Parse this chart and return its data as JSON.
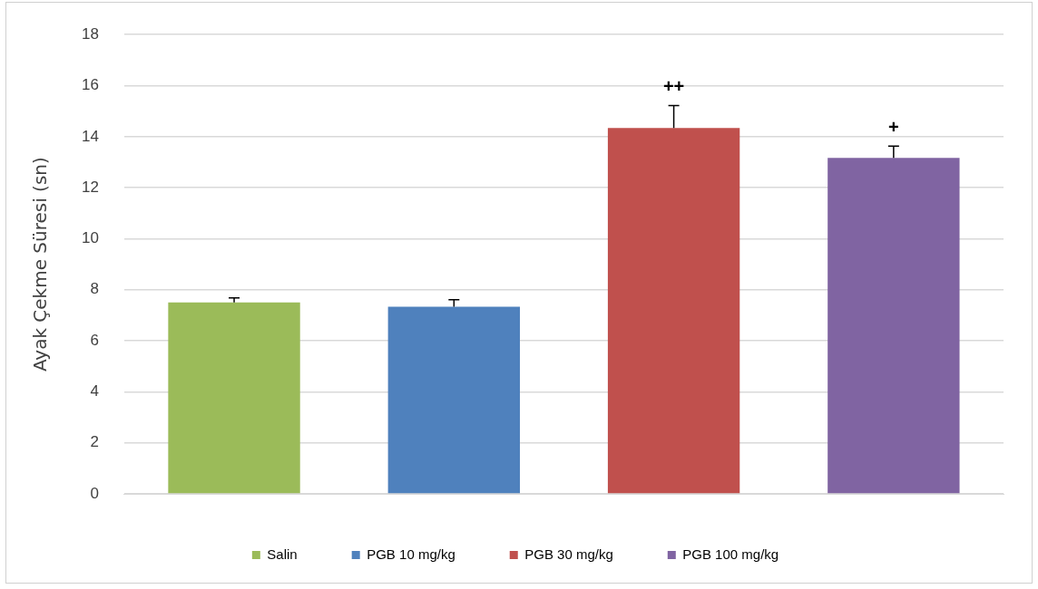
{
  "chart_data": {
    "type": "bar",
    "ylabel": "Ayak Çekme Süresi (sn)",
    "categories": [
      null,
      null,
      null,
      null
    ],
    "series": [
      {
        "name": "Salin",
        "color": "#9bbb59",
        "values": [
          7.5,
          null,
          null,
          null
        ],
        "errors": [
          [
            7.5,
            7.68
          ],
          null,
          null,
          null
        ]
      },
      {
        "name": "PGB 10 mg/kg",
        "color": "#4f81bd",
        "values": [
          null,
          7.33,
          null,
          null
        ],
        "errors": [
          null,
          [
            7.33,
            7.61
          ],
          null,
          null
        ]
      },
      {
        "name": "PGB 30 mg/kg",
        "color": "#c0504d",
        "values": [
          null,
          null,
          14.34,
          null
        ],
        "errors": [
          null,
          null,
          [
            14.34,
            15.22
          ],
          null
        ]
      },
      {
        "name": "PGB 100 mg/kg",
        "color": "#8064a2",
        "values": [
          null,
          null,
          null,
          13.17
        ],
        "errors": [
          null,
          null,
          null,
          [
            13.17,
            13.63
          ]
        ]
      }
    ],
    "ylim": [
      0,
      18
    ],
    "yticks": [
      0,
      2,
      4,
      6,
      8,
      10,
      12,
      14,
      16,
      18
    ],
    "grid": "y",
    "legend": "bottom",
    "tick_labels": "y",
    "annotations": [
      "++",
      "+"
    ]
  }
}
